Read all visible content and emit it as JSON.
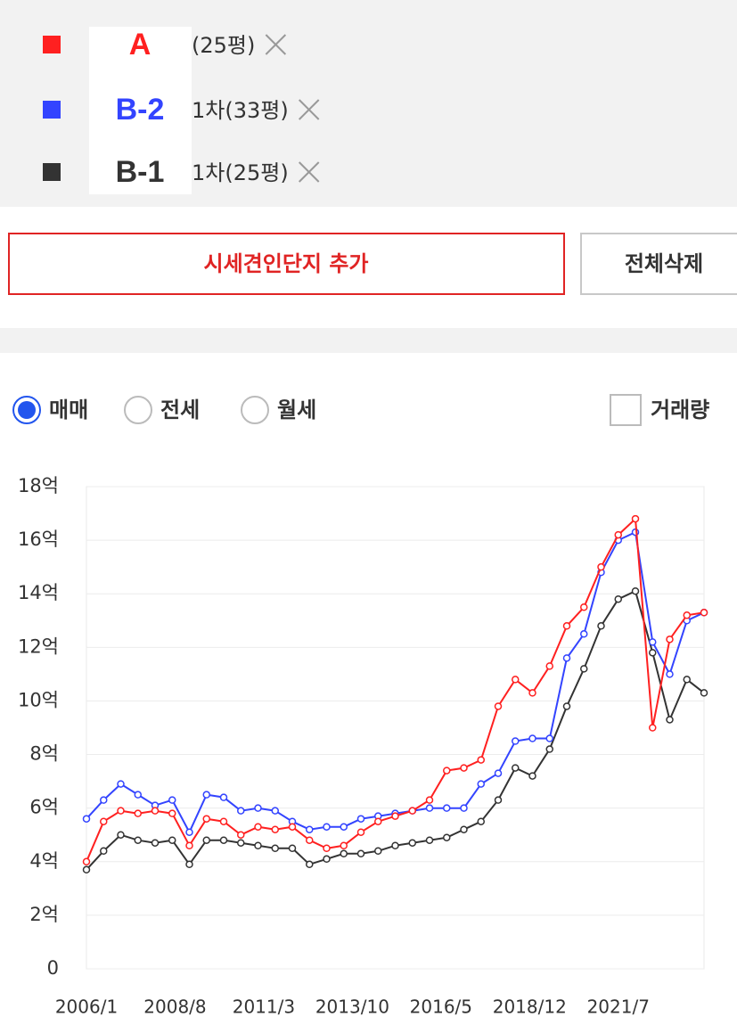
{
  "legend": [
    {
      "text": "(25평)"
    },
    {
      "text": "1차(33평)"
    },
    {
      "text": "1차(25평)"
    }
  ],
  "buttons": {
    "add": "시세견인단지 추가",
    "delete_all": "전체삭제"
  },
  "trade_types": [
    "매매",
    "전세",
    "월세"
  ],
  "selected_trade_type": 0,
  "volume_checkbox": "거래량",
  "chart_data": {
    "type": "line",
    "x": [
      "2006/1",
      "2006/7",
      "2007/1",
      "2007/7",
      "2008/1",
      "2008/7",
      "2009/1",
      "2009/7",
      "2010/1",
      "2010/7",
      "2011/1",
      "2011/7",
      "2012/1",
      "2012/7",
      "2013/1",
      "2013/7",
      "2014/1",
      "2014/7",
      "2015/1",
      "2015/7",
      "2016/1",
      "2016/7",
      "2017/1",
      "2017/7",
      "2018/1",
      "2018/7",
      "2019/1",
      "2019/7",
      "2020/1",
      "2020/7",
      "2021/1",
      "2021/7",
      "2022/1",
      "2022/7",
      "2023/1",
      "2023/7",
      "2024/1"
    ],
    "series": [
      {
        "name": "A",
        "color": "#ff2020",
        "values": [
          4.0,
          5.5,
          5.9,
          5.8,
          5.9,
          5.8,
          4.6,
          5.6,
          5.5,
          5.0,
          5.3,
          5.2,
          5.3,
          4.8,
          4.5,
          4.6,
          5.1,
          5.5,
          5.7,
          5.9,
          6.3,
          7.4,
          7.5,
          7.8,
          9.8,
          10.8,
          10.3,
          11.3,
          12.8,
          13.5,
          15.0,
          16.2,
          16.8,
          9.0,
          12.3,
          13.2,
          13.3
        ]
      },
      {
        "name": "B-2",
        "color": "#3344ff",
        "values": [
          5.6,
          6.3,
          6.9,
          6.5,
          6.1,
          6.3,
          5.1,
          6.5,
          6.4,
          5.9,
          6.0,
          5.9,
          5.5,
          5.2,
          5.3,
          5.3,
          5.6,
          5.7,
          5.8,
          5.9,
          6.0,
          6.0,
          6.0,
          6.9,
          7.3,
          8.5,
          8.6,
          8.6,
          11.6,
          12.5,
          14.8,
          16.0,
          16.3,
          12.2,
          11.0,
          13.0,
          13.3
        ]
      },
      {
        "name": "B-1",
        "color": "#333333",
        "values": [
          3.7,
          4.4,
          5.0,
          4.8,
          4.7,
          4.8,
          3.9,
          4.8,
          4.8,
          4.7,
          4.6,
          4.5,
          4.5,
          3.9,
          4.1,
          4.3,
          4.3,
          4.4,
          4.6,
          4.7,
          4.8,
          4.9,
          5.2,
          5.5,
          6.3,
          7.5,
          7.2,
          8.2,
          9.8,
          11.2,
          12.8,
          13.8,
          14.1,
          11.8,
          9.3,
          10.8,
          10.3
        ]
      }
    ],
    "ylim": [
      0,
      18
    ],
    "yticks": [
      0,
      {
        "value": 2,
        "label": "2억"
      },
      {
        "value": 4,
        "label": "4억"
      },
      {
        "value": 6,
        "label": "6억"
      },
      {
        "value": 8,
        "label": "8억"
      },
      {
        "value": 10,
        "label": "10억"
      },
      {
        "value": 12,
        "label": "12억"
      },
      {
        "value": 14,
        "label": "14억"
      },
      {
        "value": 16,
        "label": "16억"
      },
      {
        "value": 18,
        "label": "18억"
      }
    ],
    "xticks": [
      "2006/1",
      "2008/8",
      "2011/3",
      "2013/10",
      "2016/5",
      "2018/12",
      "2021/7"
    ],
    "grid": true
  }
}
